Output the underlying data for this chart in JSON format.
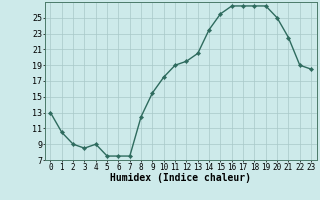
{
  "x": [
    0,
    1,
    2,
    3,
    4,
    5,
    6,
    7,
    8,
    9,
    10,
    11,
    12,
    13,
    14,
    15,
    16,
    17,
    18,
    19,
    20,
    21,
    22,
    23
  ],
  "y": [
    13,
    10.5,
    9,
    8.5,
    9,
    7.5,
    7.5,
    7.5,
    12.5,
    15.5,
    17.5,
    19,
    19.5,
    20.5,
    23.5,
    25.5,
    26.5,
    26.5,
    26.5,
    26.5,
    25,
    22.5,
    19,
    18.5
  ],
  "line_color": "#2e6b5e",
  "marker": "D",
  "marker_size": 2.2,
  "line_width": 1.0,
  "bg_color": "#cdeaea",
  "grid_color": "#a8c8c8",
  "xlabel": "Humidex (Indice chaleur)",
  "xlim": [
    -0.5,
    23.5
  ],
  "ylim": [
    7,
    27
  ],
  "yticks": [
    7,
    9,
    11,
    13,
    15,
    17,
    19,
    21,
    23,
    25
  ],
  "xticks": [
    0,
    1,
    2,
    3,
    4,
    5,
    6,
    7,
    8,
    9,
    10,
    11,
    12,
    13,
    14,
    15,
    16,
    17,
    18,
    19,
    20,
    21,
    22,
    23
  ],
  "xlabel_fontsize": 7,
  "ytick_fontsize": 6,
  "xtick_fontsize": 5.5
}
